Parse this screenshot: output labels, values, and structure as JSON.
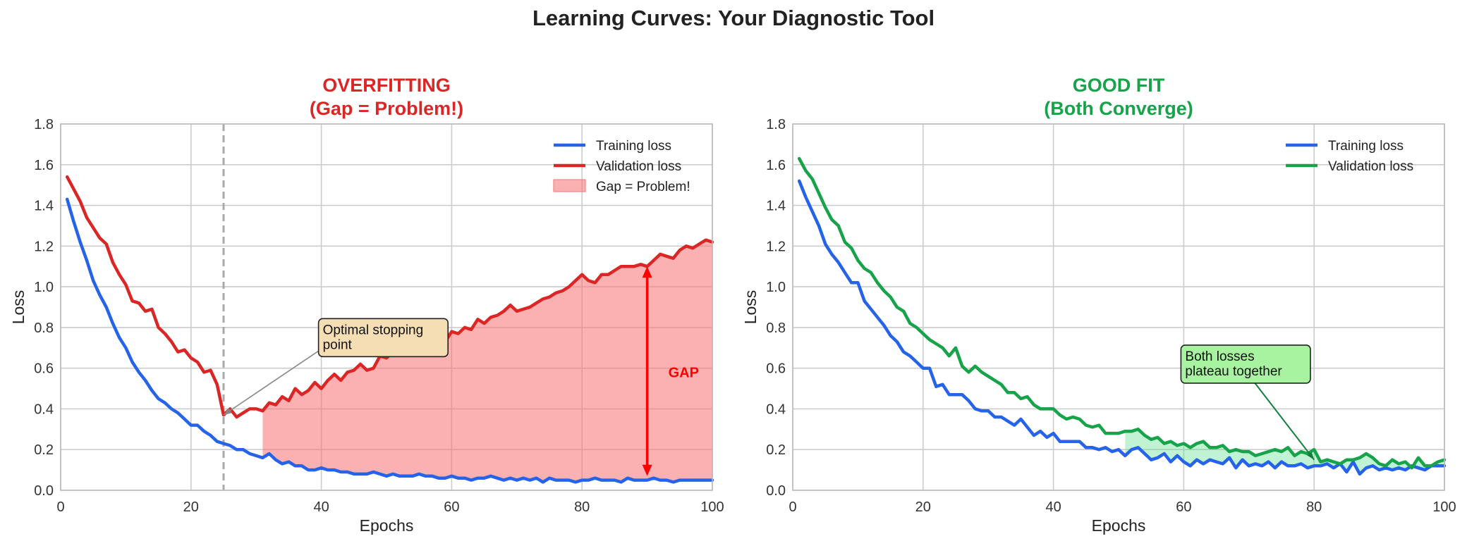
{
  "suptitle": "Learning Curves: Your Diagnostic Tool",
  "chart_data": [
    {
      "type": "line",
      "title": "OVERFITTING\n(Gap = Problem!)",
      "title_color": "#dc2626",
      "xlabel": "Epochs",
      "ylabel": "Loss",
      "xlim": [
        0,
        100
      ],
      "ylim": [
        0,
        1.8
      ],
      "xticks": [
        0,
        20,
        40,
        60,
        80,
        100
      ],
      "yticks": [
        0.0,
        0.2,
        0.4,
        0.6,
        0.8,
        1.0,
        1.2,
        1.4,
        1.6,
        1.8
      ],
      "grid": true,
      "legend_position": "top-right",
      "series": [
        {
          "name": "Training loss",
          "color": "#2563eb",
          "x": [
            1,
            2,
            3,
            4,
            5,
            6,
            7,
            8,
            9,
            10,
            11,
            12,
            13,
            14,
            15,
            16,
            17,
            18,
            19,
            20,
            21,
            22,
            23,
            24,
            25,
            26,
            27,
            28,
            29,
            30,
            31,
            32,
            33,
            34,
            35,
            36,
            37,
            38,
            39,
            40,
            41,
            42,
            43,
            44,
            45,
            46,
            47,
            48,
            49,
            50,
            51,
            52,
            53,
            54,
            55,
            56,
            57,
            58,
            59,
            60,
            61,
            62,
            63,
            64,
            65,
            66,
            67,
            68,
            69,
            70,
            71,
            72,
            73,
            74,
            75,
            76,
            77,
            78,
            79,
            80,
            81,
            82,
            83,
            84,
            85,
            86,
            87,
            88,
            89,
            90,
            91,
            92,
            93,
            94,
            95,
            96,
            97,
            98,
            99,
            100
          ],
          "y": [
            1.43,
            1.32,
            1.22,
            1.13,
            1.03,
            0.96,
            0.9,
            0.82,
            0.75,
            0.7,
            0.63,
            0.58,
            0.54,
            0.49,
            0.45,
            0.43,
            0.4,
            0.38,
            0.35,
            0.32,
            0.32,
            0.29,
            0.27,
            0.24,
            0.23,
            0.22,
            0.2,
            0.2,
            0.18,
            0.17,
            0.16,
            0.18,
            0.15,
            0.13,
            0.14,
            0.12,
            0.12,
            0.1,
            0.1,
            0.11,
            0.1,
            0.1,
            0.09,
            0.09,
            0.08,
            0.08,
            0.08,
            0.09,
            0.08,
            0.07,
            0.08,
            0.07,
            0.07,
            0.07,
            0.08,
            0.07,
            0.07,
            0.06,
            0.06,
            0.07,
            0.06,
            0.06,
            0.05,
            0.06,
            0.06,
            0.07,
            0.06,
            0.05,
            0.06,
            0.05,
            0.06,
            0.05,
            0.06,
            0.04,
            0.06,
            0.05,
            0.05,
            0.05,
            0.04,
            0.05,
            0.05,
            0.06,
            0.05,
            0.05,
            0.05,
            0.04,
            0.06,
            0.05,
            0.05,
            0.05,
            0.06,
            0.05,
            0.05,
            0.04,
            0.05,
            0.05,
            0.05,
            0.05,
            0.05,
            0.05
          ]
        },
        {
          "name": "Validation loss",
          "color": "#dc2626",
          "x": [
            1,
            2,
            3,
            4,
            5,
            6,
            7,
            8,
            9,
            10,
            11,
            12,
            13,
            14,
            15,
            16,
            17,
            18,
            19,
            20,
            21,
            22,
            23,
            24,
            25,
            26,
            27,
            28,
            29,
            30,
            31,
            32,
            33,
            34,
            35,
            36,
            37,
            38,
            39,
            40,
            41,
            42,
            43,
            44,
            45,
            46,
            47,
            48,
            49,
            50,
            51,
            52,
            53,
            54,
            55,
            56,
            57,
            58,
            59,
            60,
            61,
            62,
            63,
            64,
            65,
            66,
            67,
            68,
            69,
            70,
            71,
            72,
            73,
            74,
            75,
            76,
            77,
            78,
            79,
            80,
            81,
            82,
            83,
            84,
            85,
            86,
            87,
            88,
            89,
            90,
            91,
            92,
            93,
            94,
            95,
            96,
            97,
            98,
            99,
            100
          ],
          "y": [
            1.54,
            1.48,
            1.42,
            1.34,
            1.29,
            1.24,
            1.21,
            1.12,
            1.06,
            1.01,
            0.93,
            0.92,
            0.88,
            0.89,
            0.8,
            0.77,
            0.73,
            0.68,
            0.69,
            0.65,
            0.63,
            0.58,
            0.59,
            0.52,
            0.37,
            0.4,
            0.36,
            0.38,
            0.4,
            0.4,
            0.39,
            0.43,
            0.42,
            0.46,
            0.44,
            0.5,
            0.47,
            0.49,
            0.53,
            0.5,
            0.54,
            0.57,
            0.54,
            0.58,
            0.59,
            0.62,
            0.59,
            0.6,
            0.66,
            0.65,
            0.68,
            0.67,
            0.7,
            0.69,
            0.72,
            0.71,
            0.74,
            0.75,
            0.73,
            0.78,
            0.77,
            0.8,
            0.79,
            0.84,
            0.82,
            0.85,
            0.86,
            0.88,
            0.91,
            0.88,
            0.89,
            0.9,
            0.92,
            0.94,
            0.95,
            0.97,
            0.98,
            1.0,
            1.03,
            1.06,
            1.03,
            1.02,
            1.06,
            1.06,
            1.08,
            1.1,
            1.1,
            1.1,
            1.11,
            1.1,
            1.13,
            1.16,
            1.15,
            1.14,
            1.18,
            1.2,
            1.19,
            1.21,
            1.23,
            1.22
          ]
        }
      ],
      "gap_fill": {
        "name": "Gap = Problem!",
        "color": "#f87171",
        "from_x": 31
      },
      "early_stop_x": 25,
      "annotations": [
        {
          "text": "Optimal stopping\npoint",
          "xy": [
            25,
            0.37
          ],
          "text_xy": [
            40,
            0.75
          ]
        },
        {
          "text": "GAP",
          "x": 90,
          "y": 0.58,
          "arrow_from_y": 1.1,
          "arrow_to_y": 0.07
        }
      ]
    },
    {
      "type": "line",
      "title": "GOOD FIT\n(Both Converge)",
      "title_color": "#16a34a",
      "xlabel": "Epochs",
      "ylabel": "Loss",
      "xlim": [
        0,
        100
      ],
      "ylim": [
        0,
        1.8
      ],
      "xticks": [
        0,
        20,
        40,
        60,
        80,
        100
      ],
      "yticks": [
        0.0,
        0.2,
        0.4,
        0.6,
        0.8,
        1.0,
        1.2,
        1.4,
        1.6,
        1.8
      ],
      "grid": true,
      "legend_position": "top-right",
      "series": [
        {
          "name": "Training loss",
          "color": "#2563eb",
          "x": [
            1,
            2,
            3,
            4,
            5,
            6,
            7,
            8,
            9,
            10,
            11,
            12,
            13,
            14,
            15,
            16,
            17,
            18,
            19,
            20,
            21,
            22,
            23,
            24,
            25,
            26,
            27,
            28,
            29,
            30,
            31,
            32,
            33,
            34,
            35,
            36,
            37,
            38,
            39,
            40,
            41,
            42,
            43,
            44,
            45,
            46,
            47,
            48,
            49,
            50,
            51,
            52,
            53,
            54,
            55,
            56,
            57,
            58,
            59,
            60,
            61,
            62,
            63,
            64,
            65,
            66,
            67,
            68,
            69,
            70,
            71,
            72,
            73,
            74,
            75,
            76,
            77,
            78,
            79,
            80,
            81,
            82,
            83,
            84,
            85,
            86,
            87,
            88,
            89,
            90,
            91,
            92,
            93,
            94,
            95,
            96,
            97,
            98,
            99,
            100
          ],
          "y": [
            1.52,
            1.44,
            1.37,
            1.3,
            1.21,
            1.16,
            1.12,
            1.07,
            1.02,
            1.02,
            0.93,
            0.89,
            0.85,
            0.81,
            0.76,
            0.73,
            0.68,
            0.66,
            0.63,
            0.6,
            0.6,
            0.51,
            0.52,
            0.47,
            0.47,
            0.47,
            0.44,
            0.4,
            0.39,
            0.39,
            0.36,
            0.36,
            0.34,
            0.32,
            0.35,
            0.31,
            0.27,
            0.29,
            0.26,
            0.28,
            0.24,
            0.24,
            0.24,
            0.24,
            0.21,
            0.21,
            0.2,
            0.21,
            0.19,
            0.2,
            0.17,
            0.2,
            0.21,
            0.18,
            0.15,
            0.16,
            0.18,
            0.14,
            0.17,
            0.14,
            0.12,
            0.15,
            0.13,
            0.15,
            0.14,
            0.13,
            0.16,
            0.11,
            0.15,
            0.12,
            0.13,
            0.12,
            0.14,
            0.11,
            0.14,
            0.12,
            0.12,
            0.13,
            0.11,
            0.12,
            0.12,
            0.13,
            0.11,
            0.13,
            0.09,
            0.14,
            0.08,
            0.11,
            0.12,
            0.1,
            0.11,
            0.1,
            0.11,
            0.1,
            0.12,
            0.11,
            0.1,
            0.12,
            0.12,
            0.12
          ]
        },
        {
          "name": "Validation loss",
          "color": "#16a34a",
          "x": [
            1,
            2,
            3,
            4,
            5,
            6,
            7,
            8,
            9,
            10,
            11,
            12,
            13,
            14,
            15,
            16,
            17,
            18,
            19,
            20,
            21,
            22,
            23,
            24,
            25,
            26,
            27,
            28,
            29,
            30,
            31,
            32,
            33,
            34,
            35,
            36,
            37,
            38,
            39,
            40,
            41,
            42,
            43,
            44,
            45,
            46,
            47,
            48,
            49,
            50,
            51,
            52,
            53,
            54,
            55,
            56,
            57,
            58,
            59,
            60,
            61,
            62,
            63,
            64,
            65,
            66,
            67,
            68,
            69,
            70,
            71,
            72,
            73,
            74,
            75,
            76,
            77,
            78,
            79,
            80,
            81,
            82,
            83,
            84,
            85,
            86,
            87,
            88,
            89,
            90,
            91,
            92,
            93,
            94,
            95,
            96,
            97,
            98,
            99,
            100
          ],
          "y": [
            1.63,
            1.57,
            1.53,
            1.46,
            1.39,
            1.33,
            1.3,
            1.22,
            1.19,
            1.13,
            1.09,
            1.07,
            1.02,
            0.98,
            0.95,
            0.9,
            0.88,
            0.82,
            0.8,
            0.77,
            0.74,
            0.72,
            0.7,
            0.66,
            0.7,
            0.61,
            0.58,
            0.61,
            0.58,
            0.56,
            0.54,
            0.52,
            0.48,
            0.48,
            0.45,
            0.46,
            0.42,
            0.4,
            0.4,
            0.4,
            0.37,
            0.35,
            0.36,
            0.35,
            0.32,
            0.31,
            0.32,
            0.28,
            0.28,
            0.28,
            0.29,
            0.29,
            0.3,
            0.27,
            0.25,
            0.26,
            0.23,
            0.24,
            0.22,
            0.23,
            0.21,
            0.23,
            0.24,
            0.21,
            0.21,
            0.22,
            0.19,
            0.2,
            0.19,
            0.19,
            0.17,
            0.18,
            0.19,
            0.2,
            0.19,
            0.21,
            0.17,
            0.19,
            0.18,
            0.2,
            0.14,
            0.15,
            0.14,
            0.13,
            0.15,
            0.15,
            0.16,
            0.18,
            0.16,
            0.13,
            0.12,
            0.15,
            0.13,
            0.14,
            0.11,
            0.16,
            0.12,
            0.12,
            0.14,
            0.15
          ]
        }
      ],
      "gap_fill": {
        "color": "#4ade80",
        "from_x": 51
      },
      "annotations": [
        {
          "text": "Both losses\nplateau together",
          "xy": [
            80,
            0.15
          ],
          "text_xy": [
            60,
            0.62
          ]
        }
      ]
    }
  ]
}
